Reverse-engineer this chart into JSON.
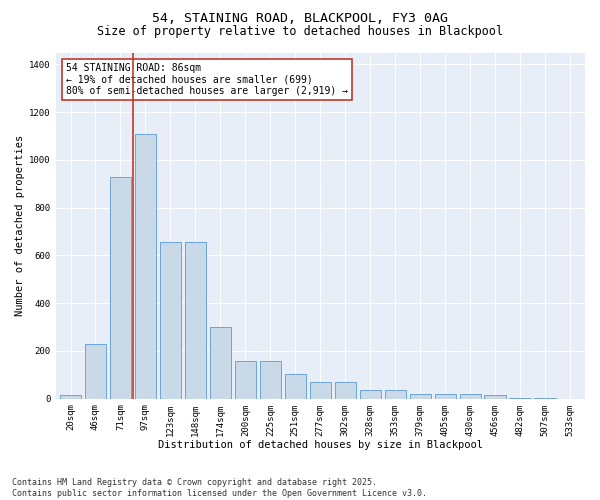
{
  "title1": "54, STAINING ROAD, BLACKPOOL, FY3 0AG",
  "title2": "Size of property relative to detached houses in Blackpool",
  "xlabel": "Distribution of detached houses by size in Blackpool",
  "ylabel": "Number of detached properties",
  "categories": [
    "20sqm",
    "46sqm",
    "71sqm",
    "97sqm",
    "123sqm",
    "148sqm",
    "174sqm",
    "200sqm",
    "225sqm",
    "251sqm",
    "277sqm",
    "302sqm",
    "328sqm",
    "353sqm",
    "379sqm",
    "405sqm",
    "430sqm",
    "456sqm",
    "482sqm",
    "507sqm",
    "533sqm"
  ],
  "values": [
    15,
    230,
    930,
    1110,
    655,
    655,
    300,
    160,
    160,
    105,
    70,
    70,
    35,
    35,
    20,
    20,
    20,
    15,
    5,
    5,
    0
  ],
  "bar_color": "#c9d9e8",
  "bar_edge_color": "#5b9bd5",
  "vline_color": "#c0392b",
  "annotation_text": "54 STAINING ROAD: 86sqm\n← 19% of detached houses are smaller (699)\n80% of semi-detached houses are larger (2,919) →",
  "annotation_box_color": "#c0392b",
  "ylim": [
    0,
    1450
  ],
  "yticks": [
    0,
    200,
    400,
    600,
    800,
    1000,
    1200,
    1400
  ],
  "bg_color": "#e8eef7",
  "footnote": "Contains HM Land Registry data © Crown copyright and database right 2025.\nContains public sector information licensed under the Open Government Licence v3.0.",
  "title_fontsize": 9.5,
  "subtitle_fontsize": 8.5,
  "axis_label_fontsize": 7.5,
  "tick_fontsize": 6.5,
  "annotation_fontsize": 7,
  "footnote_fontsize": 6
}
